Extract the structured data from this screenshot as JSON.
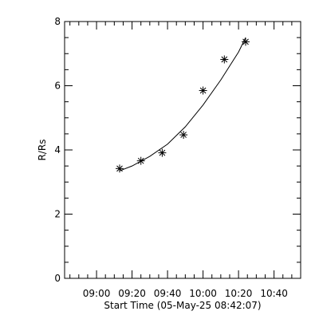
{
  "chart_data": {
    "type": "scatter",
    "xlabel": "Start Time (05-May-25 08:42:07)",
    "ylabel": "R/Rs",
    "x_ticks": [
      "09:00",
      "09:20",
      "09:40",
      "10:00",
      "10:20",
      "10:40"
    ],
    "x_tick_minutes": [
      540,
      560,
      580,
      600,
      620,
      640
    ],
    "y_ticks": [
      "0",
      "2",
      "4",
      "6",
      "8"
    ],
    "xlim": [
      "08:42",
      "10:55"
    ],
    "ylim": [
      0,
      8
    ],
    "points": [
      {
        "x": "09:13",
        "y": 3.42
      },
      {
        "x": "09:25",
        "y": 3.66
      },
      {
        "x": "09:37",
        "y": 3.91
      },
      {
        "x": "09:49",
        "y": 4.47
      },
      {
        "x": "10:00",
        "y": 5.85
      },
      {
        "x": "10:12",
        "y": 6.82
      },
      {
        "x": "10:24",
        "y": 7.37
      }
    ],
    "fit_curve": [
      {
        "x": "09:13",
        "y": 3.35
      },
      {
        "x": "09:20",
        "y": 3.5
      },
      {
        "x": "09:30",
        "y": 3.8
      },
      {
        "x": "09:40",
        "y": 4.18
      },
      {
        "x": "09:50",
        "y": 4.72
      },
      {
        "x": "10:00",
        "y": 5.4
      },
      {
        "x": "10:10",
        "y": 6.18
      },
      {
        "x": "10:20",
        "y": 7.05
      },
      {
        "x": "10:24",
        "y": 7.5
      }
    ],
    "marker": "asterisk",
    "grid": false,
    "colors": {
      "axis": "#000000",
      "marker": "#000000",
      "curve": "#000000",
      "background": "#ffffff"
    }
  }
}
